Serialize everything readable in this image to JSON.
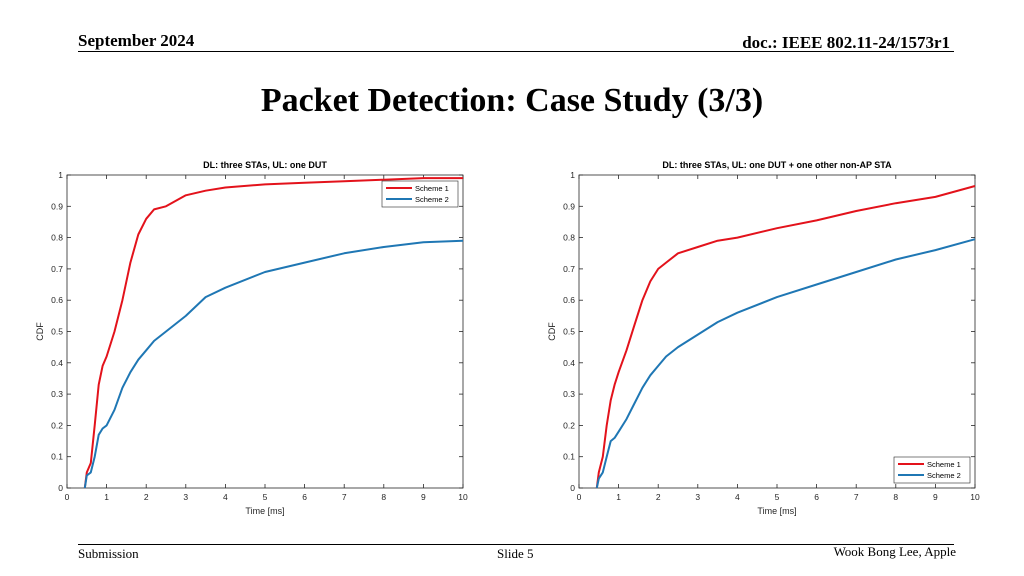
{
  "header": {
    "date": "September 2024",
    "doc": "doc.: IEEE 802.11-24/1573r1"
  },
  "slide": {
    "title": "Packet Detection: Case Study (3/3)"
  },
  "footer": {
    "left": "Submission",
    "center": "Slide 5",
    "right": "Wook Bong Lee, Apple"
  },
  "colors": {
    "scheme1": "#e3121b",
    "scheme2": "#1f77b4"
  },
  "chart_data": [
    {
      "type": "line",
      "title": "DL: three STAs, UL: one DUT",
      "xlabel": "Time [ms]",
      "ylabel": "CDF",
      "xlim": [
        0,
        10
      ],
      "ylim": [
        0,
        1
      ],
      "xticks": [
        "0",
        "1",
        "2",
        "3",
        "4",
        "5",
        "6",
        "7",
        "8",
        "9",
        "10"
      ],
      "yticks": [
        "0",
        "0.1",
        "0.2",
        "0.3",
        "0.4",
        "0.5",
        "0.6",
        "0.7",
        "0.8",
        "0.9",
        "1"
      ],
      "grid": false,
      "legend": "top-right",
      "series": [
        {
          "name": "Scheme 1",
          "x": [
            0.45,
            0.5,
            0.6,
            0.7,
            0.8,
            0.9,
            1.0,
            1.2,
            1.4,
            1.6,
            1.8,
            2.0,
            2.2,
            2.5,
            3.0,
            3.5,
            4.0,
            5.0,
            6.0,
            7.0,
            8.0,
            9.0,
            10.0
          ],
          "y": [
            0.0,
            0.05,
            0.08,
            0.2,
            0.33,
            0.39,
            0.42,
            0.5,
            0.6,
            0.72,
            0.81,
            0.86,
            0.89,
            0.9,
            0.935,
            0.95,
            0.96,
            0.97,
            0.975,
            0.98,
            0.985,
            0.99,
            0.99
          ]
        },
        {
          "name": "Scheme 2",
          "x": [
            0.45,
            0.5,
            0.6,
            0.7,
            0.8,
            0.9,
            1.0,
            1.2,
            1.4,
            1.6,
            1.8,
            2.0,
            2.2,
            2.5,
            3.0,
            3.5,
            4.0,
            5.0,
            6.0,
            7.0,
            8.0,
            9.0,
            10.0
          ],
          "y": [
            0.0,
            0.04,
            0.05,
            0.1,
            0.17,
            0.19,
            0.2,
            0.25,
            0.32,
            0.37,
            0.41,
            0.44,
            0.47,
            0.5,
            0.55,
            0.61,
            0.64,
            0.69,
            0.72,
            0.75,
            0.77,
            0.785,
            0.79
          ]
        }
      ]
    },
    {
      "type": "line",
      "title": "DL: three STAs, UL: one DUT + one other non-AP STA",
      "xlabel": "Time [ms]",
      "ylabel": "CDF",
      "xlim": [
        0,
        10
      ],
      "ylim": [
        0,
        1
      ],
      "xticks": [
        "0",
        "1",
        "2",
        "3",
        "4",
        "5",
        "6",
        "7",
        "8",
        "9",
        "10"
      ],
      "yticks": [
        "0",
        "0.1",
        "0.2",
        "0.3",
        "0.4",
        "0.5",
        "0.6",
        "0.7",
        "0.8",
        "0.9",
        "1"
      ],
      "grid": false,
      "legend": "bottom-right",
      "series": [
        {
          "name": "Scheme 1",
          "x": [
            0.45,
            0.5,
            0.6,
            0.7,
            0.8,
            0.9,
            1.0,
            1.2,
            1.4,
            1.6,
            1.8,
            2.0,
            2.2,
            2.5,
            3.0,
            3.5,
            4.0,
            5.0,
            6.0,
            7.0,
            8.0,
            9.0,
            10.0
          ],
          "y": [
            0.0,
            0.05,
            0.1,
            0.2,
            0.28,
            0.33,
            0.37,
            0.44,
            0.52,
            0.6,
            0.66,
            0.7,
            0.72,
            0.75,
            0.77,
            0.79,
            0.8,
            0.83,
            0.855,
            0.885,
            0.91,
            0.93,
            0.965
          ]
        },
        {
          "name": "Scheme 2",
          "x": [
            0.45,
            0.5,
            0.6,
            0.7,
            0.8,
            0.9,
            1.0,
            1.2,
            1.4,
            1.6,
            1.8,
            2.0,
            2.2,
            2.5,
            3.0,
            3.5,
            4.0,
            5.0,
            6.0,
            7.0,
            8.0,
            9.0,
            10.0
          ],
          "y": [
            0.0,
            0.03,
            0.05,
            0.1,
            0.15,
            0.16,
            0.18,
            0.22,
            0.27,
            0.32,
            0.36,
            0.39,
            0.42,
            0.45,
            0.49,
            0.53,
            0.56,
            0.61,
            0.65,
            0.69,
            0.73,
            0.76,
            0.795
          ]
        }
      ]
    }
  ]
}
